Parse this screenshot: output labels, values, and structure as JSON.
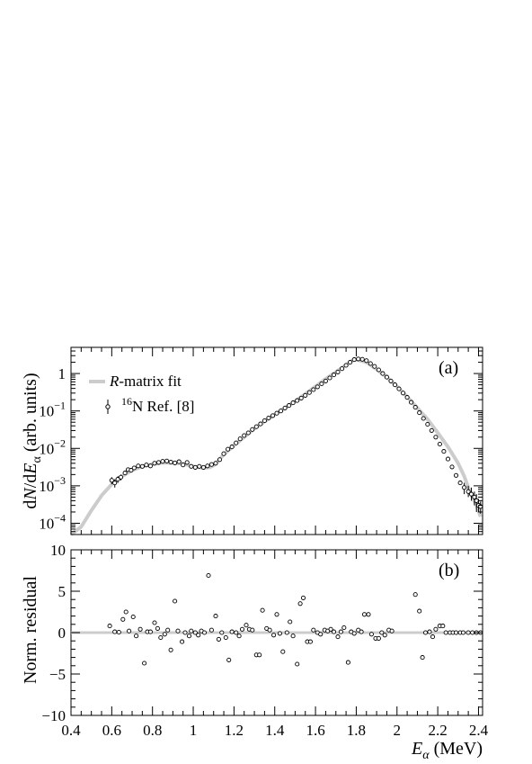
{
  "chart_data": [
    {
      "type": "scatter",
      "panel_label": "(a)",
      "ylabel": "dN/dE_α (arb. units)",
      "yscale": "log",
      "xlim": [
        0.4,
        2.42
      ],
      "ylim": [
        5e-05,
        5
      ],
      "y_tick_labels": [
        "10^-4",
        "10^-3",
        "10^-2",
        "10^-1",
        "1"
      ],
      "legend_position": "top-left",
      "legend": [
        {
          "label_italic": "R",
          "label_rest": "-matrix fit",
          "style": "line"
        },
        {
          "label_sup": "16",
          "label_rest": "N Ref. [8]",
          "style": "marker-errorbar"
        }
      ],
      "colors": {
        "fit": "#cccccc",
        "data": "#000000"
      },
      "series": [
        {
          "name": "R-matrix fit",
          "kind": "curve",
          "x": [
            0.4,
            0.45,
            0.5,
            0.55,
            0.6,
            0.65,
            0.7,
            0.75,
            0.8,
            0.85,
            0.9,
            0.95,
            1.0,
            1.05,
            1.08,
            1.1,
            1.12,
            1.15,
            1.2,
            1.25,
            1.3,
            1.4,
            1.5,
            1.6,
            1.65,
            1.7,
            1.75,
            1.78,
            1.8,
            1.85,
            1.9,
            1.95,
            2.0,
            2.05,
            2.1,
            2.15,
            2.2,
            2.25,
            2.3,
            2.33,
            2.35,
            2.37,
            2.39,
            2.41
          ],
          "y": [
            3e-05,
            8e-05,
            0.00022,
            0.00055,
            0.0011,
            0.0018,
            0.0026,
            0.0033,
            0.0038,
            0.0041,
            0.0041,
            0.0039,
            0.0033,
            0.003,
            0.0031,
            0.0035,
            0.0045,
            0.0068,
            0.012,
            0.02,
            0.034,
            0.08,
            0.18,
            0.45,
            0.72,
            1.1,
            1.7,
            2.2,
            2.35,
            2.0,
            1.3,
            0.8,
            0.45,
            0.24,
            0.12,
            0.06,
            0.026,
            0.011,
            0.004,
            0.0018,
            0.0009,
            0.0005,
            0.0003,
            0.00015
          ]
        },
        {
          "name": "16N Ref. [8]",
          "kind": "points",
          "x": [
            0.6,
            0.615,
            0.63,
            0.645,
            0.665,
            0.68,
            0.695,
            0.71,
            0.73,
            0.75,
            0.77,
            0.79,
            0.81,
            0.83,
            0.85,
            0.87,
            0.89,
            0.91,
            0.93,
            0.95,
            0.97,
            0.99,
            1.01,
            1.03,
            1.05,
            1.07,
            1.09,
            1.11,
            1.13,
            1.15,
            1.17,
            1.19,
            1.21,
            1.23,
            1.25,
            1.27,
            1.29,
            1.31,
            1.33,
            1.35,
            1.37,
            1.39,
            1.41,
            1.43,
            1.45,
            1.47,
            1.49,
            1.51,
            1.53,
            1.55,
            1.57,
            1.59,
            1.61,
            1.63,
            1.65,
            1.67,
            1.69,
            1.71,
            1.73,
            1.75,
            1.77,
            1.79,
            1.81,
            1.83,
            1.85,
            1.87,
            1.89,
            1.91,
            1.93,
            1.95,
            1.97,
            1.99,
            2.01,
            2.03,
            2.05,
            2.07,
            2.09,
            2.11,
            2.13,
            2.15,
            2.17,
            2.19,
            2.21,
            2.23,
            2.25,
            2.27,
            2.29,
            2.31,
            2.33,
            2.35,
            2.365,
            2.38,
            2.39,
            2.4,
            2.41
          ],
          "y": [
            0.0014,
            0.0012,
            0.0015,
            0.0017,
            0.0022,
            0.0027,
            0.0026,
            0.003,
            0.0034,
            0.0033,
            0.0036,
            0.0034,
            0.004,
            0.0042,
            0.0045,
            0.0046,
            0.0043,
            0.0041,
            0.0044,
            0.0036,
            0.0042,
            0.0033,
            0.0031,
            0.0033,
            0.0031,
            0.0034,
            0.0037,
            0.004,
            0.005,
            0.0072,
            0.0095,
            0.011,
            0.014,
            0.018,
            0.022,
            0.026,
            0.032,
            0.038,
            0.045,
            0.055,
            0.065,
            0.075,
            0.087,
            0.1,
            0.12,
            0.14,
            0.165,
            0.19,
            0.22,
            0.26,
            0.31,
            0.37,
            0.44,
            0.53,
            0.63,
            0.76,
            0.92,
            1.1,
            1.35,
            1.65,
            2.0,
            2.35,
            2.45,
            2.4,
            2.2,
            1.85,
            1.55,
            1.25,
            1.0,
            0.8,
            0.63,
            0.5,
            0.39,
            0.3,
            0.23,
            0.17,
            0.125,
            0.09,
            0.063,
            0.044,
            0.03,
            0.02,
            0.013,
            0.0083,
            0.0052,
            0.0032,
            0.0019,
            0.0012,
            0.0009,
            0.0007,
            0.0006,
            0.0005,
            0.0004,
            0.0003,
            0.00028
          ],
          "err_low": [
            0.0003,
            0.0003,
            0.0003,
            0.0003,
            0,
            0,
            0,
            0,
            0,
            0,
            0,
            0,
            0,
            0,
            0,
            0,
            0,
            0,
            0,
            0,
            0,
            0,
            0,
            0,
            0,
            0,
            0,
            0,
            0,
            0,
            0,
            0,
            0,
            0,
            0,
            0,
            0,
            0,
            0,
            0,
            0,
            0,
            0,
            0,
            0,
            0,
            0,
            0,
            0,
            0,
            0,
            0,
            0,
            0,
            0,
            0,
            0,
            0,
            0,
            0,
            0,
            0,
            0,
            0,
            0,
            0,
            0,
            0,
            0,
            0,
            0,
            0,
            0,
            0,
            0,
            0,
            0,
            0,
            0,
            0,
            0,
            0,
            0,
            0,
            0,
            0,
            0,
            0,
            0.0003,
            0.0002,
            0.0002,
            0.0002,
            0.0002,
            0.0001,
            0.0001
          ],
          "err_high": [
            0.0003,
            0.0003,
            0.0003,
            0.0003,
            0,
            0,
            0,
            0,
            0,
            0,
            0,
            0,
            0,
            0,
            0,
            0,
            0,
            0,
            0,
            0,
            0,
            0,
            0,
            0,
            0,
            0,
            0,
            0,
            0,
            0,
            0,
            0,
            0,
            0,
            0,
            0,
            0,
            0,
            0,
            0,
            0,
            0,
            0,
            0,
            0,
            0,
            0,
            0,
            0,
            0,
            0,
            0,
            0,
            0,
            0,
            0,
            0,
            0,
            0,
            0,
            0,
            0,
            0,
            0,
            0,
            0,
            0,
            0,
            0,
            0,
            0,
            0,
            0,
            0,
            0,
            0,
            0,
            0,
            0,
            0,
            0,
            0,
            0,
            0,
            0,
            0,
            0,
            0,
            0.0003,
            0.0003,
            0.0003,
            0.0002,
            0.0002,
            0.00015,
            0.0001
          ]
        }
      ]
    },
    {
      "type": "scatter",
      "panel_label": "(b)",
      "ylabel": "Norm. residual",
      "xlabel_italic": "E",
      "xlabel_sub": "α",
      "xlabel_rest": " (MeV)",
      "xlim": [
        0.4,
        2.42
      ],
      "ylim": [
        -10,
        10
      ],
      "x_ticks": [
        0.4,
        0.6,
        0.8,
        1.0,
        1.2,
        1.4,
        1.6,
        1.8,
        2.0,
        2.2,
        2.4
      ],
      "x_tick_labels": [
        "0.4",
        "0.6",
        "0.8",
        "1",
        "1.2",
        "1.4",
        "1.6",
        "1.8",
        "2",
        "2.2",
        "2.4"
      ],
      "y_ticks": [
        -10,
        -5,
        0,
        5,
        10
      ],
      "y_tick_labels": [
        "−10",
        "−5",
        "0",
        "5",
        "10"
      ],
      "reference_line": 0,
      "series": [
        {
          "kind": "points",
          "x": [
            0.59,
            0.615,
            0.635,
            0.655,
            0.67,
            0.685,
            0.705,
            0.72,
            0.74,
            0.76,
            0.775,
            0.79,
            0.81,
            0.825,
            0.84,
            0.86,
            0.875,
            0.89,
            0.91,
            0.925,
            0.945,
            0.96,
            0.98,
            0.99,
            1.01,
            1.025,
            1.04,
            1.055,
            1.075,
            1.09,
            1.11,
            1.125,
            1.14,
            1.16,
            1.175,
            1.19,
            1.21,
            1.225,
            1.24,
            1.26,
            1.275,
            1.29,
            1.31,
            1.325,
            1.34,
            1.36,
            1.375,
            1.395,
            1.41,
            1.425,
            1.44,
            1.46,
            1.475,
            1.49,
            1.51,
            1.525,
            1.54,
            1.56,
            1.575,
            1.59,
            1.61,
            1.625,
            1.645,
            1.66,
            1.675,
            1.69,
            1.71,
            1.725,
            1.74,
            1.76,
            1.775,
            1.79,
            1.81,
            1.825,
            1.84,
            1.86,
            1.875,
            1.895,
            1.91,
            1.925,
            1.94,
            1.96,
            1.975,
            2.09,
            2.11,
            2.125,
            2.14,
            2.16,
            2.175,
            2.19,
            2.21,
            2.225,
            2.24,
            2.26,
            2.275,
            2.29,
            2.31,
            2.325,
            2.35,
            2.37,
            2.39,
            2.41
          ],
          "y": [
            0.8,
            0.1,
            0.05,
            1.6,
            2.5,
            0.2,
            1.9,
            -0.4,
            0.4,
            -3.7,
            0.1,
            0.1,
            1.2,
            0.5,
            -0.6,
            -0.2,
            0.3,
            -2.1,
            3.8,
            0.2,
            -1.1,
            0.0,
            -0.4,
            0.2,
            0.0,
            -0.3,
            0.2,
            0.0,
            6.9,
            0.3,
            2.0,
            -0.8,
            0.0,
            -0.6,
            -3.3,
            0.1,
            0.0,
            -0.4,
            0.4,
            0.9,
            0.4,
            0.3,
            -2.7,
            -2.7,
            2.7,
            0.5,
            0.3,
            -0.3,
            2.2,
            -0.1,
            -2.3,
            0.0,
            1.3,
            -0.4,
            -3.8,
            3.5,
            4.2,
            -1.1,
            -1.1,
            0.3,
            0.0,
            -0.2,
            0.3,
            0.2,
            0.4,
            0.1,
            -0.5,
            0.1,
            0.6,
            -3.6,
            0.1,
            -0.1,
            0.3,
            0.1,
            2.2,
            2.2,
            -0.2,
            -0.7,
            -0.7,
            0.0,
            -0.3,
            0.3,
            0.2,
            4.6,
            2.6,
            -3.0,
            0.0,
            0.1,
            -0.5,
            0.4,
            0.8,
            0.8,
            0.0,
            0.0,
            0.0,
            0.0,
            0.0,
            0.0,
            0.0,
            0.0,
            0.0,
            0.0
          ]
        }
      ]
    }
  ]
}
